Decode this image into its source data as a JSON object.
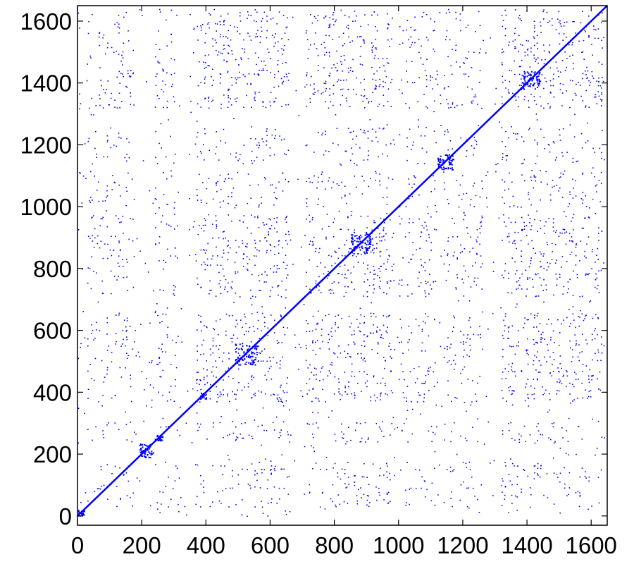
{
  "chart_data": {
    "type": "scatter",
    "subtype": "sparsity-pattern",
    "title": "",
    "xlabel": "",
    "ylabel": "",
    "xlim": [
      0,
      1650
    ],
    "ylim": [
      -30,
      1650
    ],
    "xticks": [
      0,
      200,
      400,
      600,
      800,
      1000,
      1200,
      1400,
      1600
    ],
    "yticks": [
      0,
      200,
      400,
      600,
      800,
      1000,
      1200,
      1400,
      1600
    ],
    "xtick_labels": [
      "0",
      "200",
      "400",
      "600",
      "800",
      "1000",
      "1200",
      "1400",
      "1600"
    ],
    "ytick_labels": [
      "0",
      "200",
      "400",
      "600",
      "800",
      "1000",
      "1200",
      "1400",
      "1600"
    ],
    "marker_color": "#0000ff",
    "grid": false,
    "legend": "none",
    "structure": {
      "diagonal": [
        0,
        1650
      ],
      "block_intervals": [
        [
          30,
          180
        ],
        [
          240,
          310
        ],
        [
          370,
          660
        ],
        [
          710,
          980
        ],
        [
          1000,
          1120
        ],
        [
          1140,
          1260
        ],
        [
          1320,
          1640
        ]
      ],
      "dense_blocks": [
        [
          370,
          660
        ],
        [
          710,
          980
        ],
        [
          1320,
          1640
        ]
      ],
      "diagonal_blocks": [
        {
          "from": 0,
          "to": 20
        },
        {
          "from": 190,
          "to": 235
        },
        {
          "from": 245,
          "to": 265
        },
        {
          "from": 380,
          "to": 400
        },
        {
          "from": 490,
          "to": 560
        },
        {
          "from": 850,
          "to": 920
        },
        {
          "from": 1120,
          "to": 1170
        },
        {
          "from": 1380,
          "to": 1440
        }
      ]
    }
  }
}
